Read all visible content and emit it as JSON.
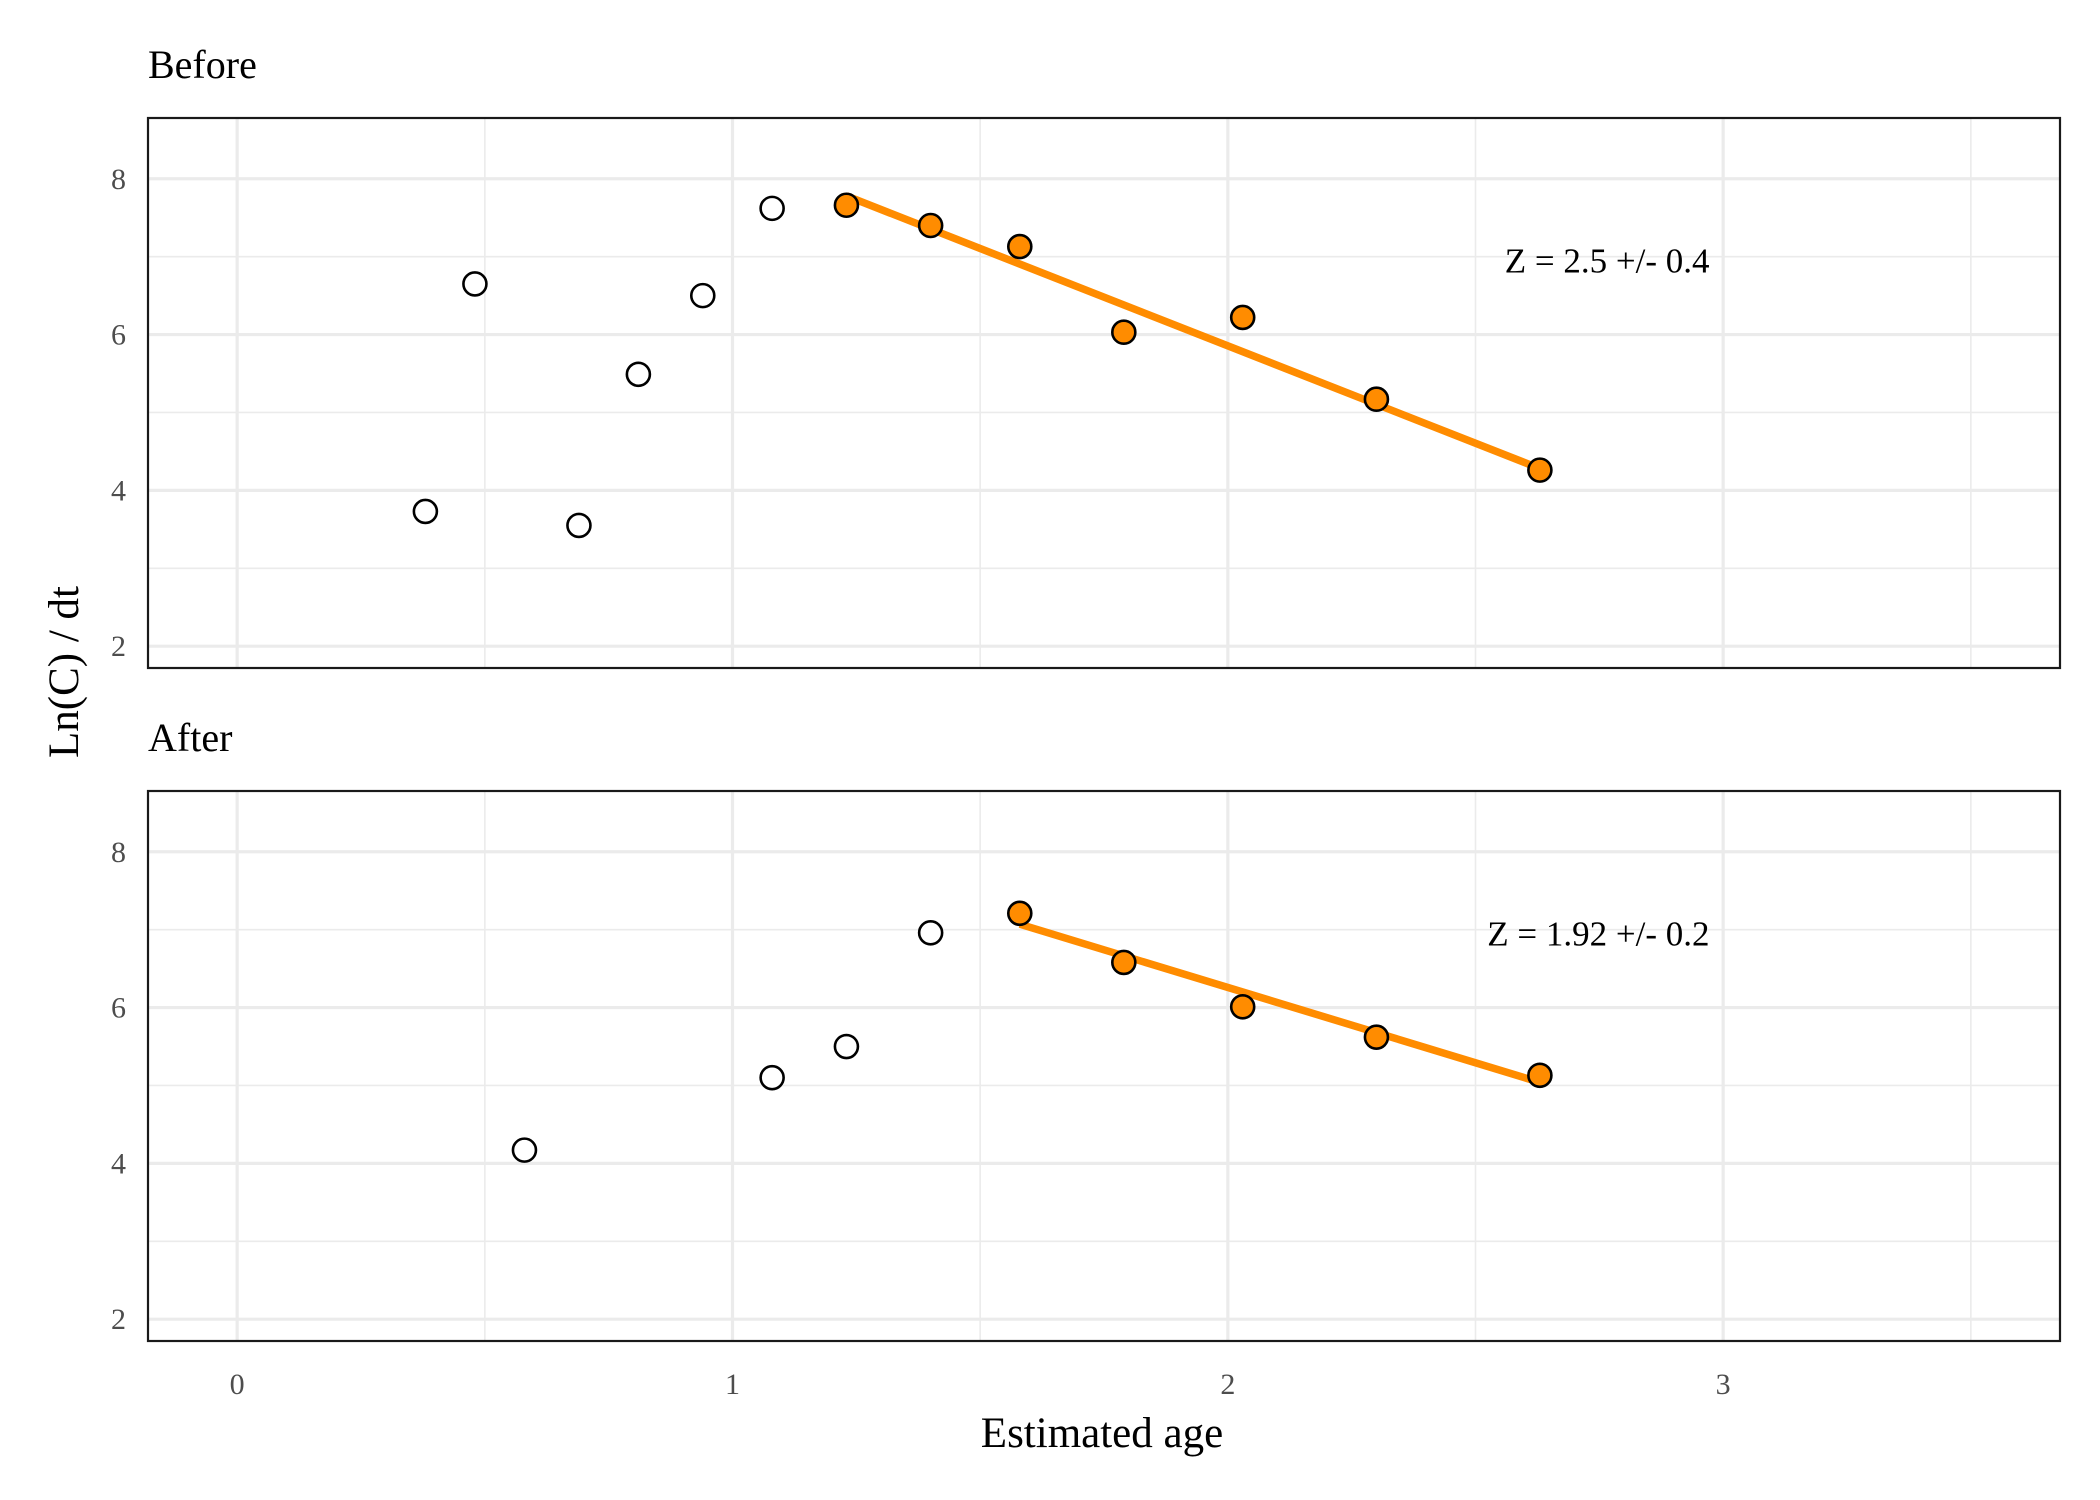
{
  "chart_data": {
    "type": "scatter",
    "xlabel": "Estimated age",
    "ylabel": "Ln(C) / dt",
    "xlim": [
      -0.18,
      3.68
    ],
    "ylim": [
      1.72,
      8.78
    ],
    "x_ticks": [
      0,
      1,
      2,
      3
    ],
    "x_tick_labels": [
      "0",
      "1",
      "2",
      "3"
    ],
    "y_ticks": [
      2,
      4,
      6,
      8
    ],
    "y_tick_labels": [
      "2",
      "4",
      "6",
      "8"
    ],
    "grid": true,
    "fit_color": "#ff8c00",
    "panels": [
      {
        "title": "Before",
        "annotation": "Z = 2.5 +/- 0.4",
        "annotation_anchor": [
          2.5,
          6.95
        ],
        "points": [
          {
            "x": 0.38,
            "y": 3.73,
            "used_in_fit": false
          },
          {
            "x": 0.48,
            "y": 6.65,
            "used_in_fit": false
          },
          {
            "x": 0.69,
            "y": 3.55,
            "used_in_fit": false
          },
          {
            "x": 0.81,
            "y": 5.49,
            "used_in_fit": false
          },
          {
            "x": 0.94,
            "y": 6.5,
            "used_in_fit": false
          },
          {
            "x": 1.08,
            "y": 7.62,
            "used_in_fit": false
          },
          {
            "x": 1.23,
            "y": 7.66,
            "used_in_fit": true
          },
          {
            "x": 1.4,
            "y": 7.4,
            "used_in_fit": true
          },
          {
            "x": 1.58,
            "y": 7.13,
            "used_in_fit": true
          },
          {
            "x": 1.79,
            "y": 6.03,
            "used_in_fit": true
          },
          {
            "x": 2.03,
            "y": 6.22,
            "used_in_fit": true
          },
          {
            "x": 2.3,
            "y": 5.17,
            "used_in_fit": true
          },
          {
            "x": 2.63,
            "y": 4.26,
            "used_in_fit": true
          }
        ],
        "fit_line": {
          "x": [
            1.23,
            2.63
          ],
          "y": [
            7.78,
            4.28
          ]
        }
      },
      {
        "title": "After",
        "annotation": "Z = 1.92 +/- 0.2",
        "annotation_anchor": [
          2.5,
          6.95
        ],
        "points": [
          {
            "x": 0.58,
            "y": 4.17,
            "used_in_fit": false
          },
          {
            "x": 1.08,
            "y": 5.1,
            "used_in_fit": false
          },
          {
            "x": 1.23,
            "y": 5.5,
            "used_in_fit": false
          },
          {
            "x": 1.4,
            "y": 6.96,
            "used_in_fit": false
          },
          {
            "x": 1.58,
            "y": 7.21,
            "used_in_fit": true
          },
          {
            "x": 1.79,
            "y": 6.58,
            "used_in_fit": true
          },
          {
            "x": 2.03,
            "y": 6.01,
            "used_in_fit": true
          },
          {
            "x": 2.3,
            "y": 5.62,
            "used_in_fit": true
          },
          {
            "x": 2.63,
            "y": 5.13,
            "used_in_fit": true
          }
        ],
        "fit_line": {
          "x": [
            1.58,
            2.63
          ],
          "y": [
            7.07,
            5.04
          ]
        }
      }
    ]
  }
}
